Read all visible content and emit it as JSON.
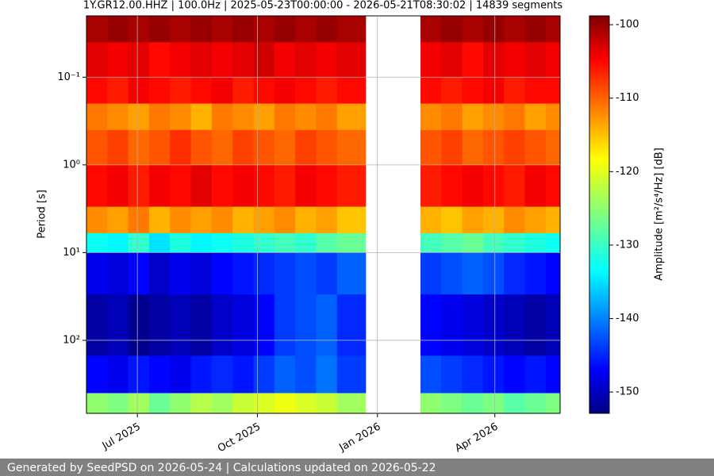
{
  "chart_data": {
    "type": "heatmap",
    "title": "1Y.GR12.00.HHZ | 100.0Hz | 2025-05-23T00:00:00 - 2026-05-21T08:30:02 | 14839 segments",
    "ylabel": "Period [s]",
    "colorbar_label": "Amplitude [m²/s⁴/Hz] [dB]",
    "footer": "Generated by SeedPSD on 2026-05-24 | Calculations updated on 2026-05-22",
    "colormap": "jet",
    "yscale": "log",
    "yinvert": true,
    "grid": true,
    "xlim": [
      "2025-05-23",
      "2026-05-21"
    ],
    "xticks": [
      {
        "value": "2025-07-01",
        "label": "Jul 2025"
      },
      {
        "value": "2025-10-01",
        "label": "Oct 2025"
      },
      {
        "value": "2026-01-01",
        "label": "Jan 2026"
      },
      {
        "value": "2026-04-01",
        "label": "Apr 2026"
      }
    ],
    "ylim": [
      0.02,
      680
    ],
    "yticks": [
      {
        "value": 0.1,
        "label": "10⁻¹"
      },
      {
        "value": 1,
        "label": "10⁰"
      },
      {
        "value": 10,
        "label": "10¹"
      },
      {
        "value": 100,
        "label": "10²"
      }
    ],
    "clim": [
      -152.9,
      -98.8
    ],
    "cticks": [
      -150,
      -140,
      -130,
      -120,
      -110,
      -100
    ],
    "x_edges": [
      "2025-05-23",
      "2025-06-08",
      "2025-06-24",
      "2025-07-10",
      "2025-07-26",
      "2025-08-11",
      "2025-08-27",
      "2025-09-12",
      "2025-09-28",
      "2025-10-14",
      "2025-10-30",
      "2025-11-15",
      "2025-12-01",
      "2025-12-23",
      "2026-02-03",
      "2026-02-19",
      "2026-03-07",
      "2026-03-23",
      "2026-04-08",
      "2026-04-24",
      "2026-05-10",
      "2026-05-21"
    ],
    "y_edges": [
      0.02,
      0.04,
      0.1,
      0.2,
      0.4,
      1,
      3,
      6,
      10,
      30,
      150,
      400,
      680
    ],
    "values": [
      [
        -101,
        -100,
        -101,
        -100,
        -101,
        -100,
        -101,
        -100,
        -101,
        -100,
        -101,
        -100,
        -101,
        null,
        -101,
        -100,
        -101,
        -100,
        -101,
        -100,
        -101
      ],
      [
        -104,
        -105,
        -104,
        -106,
        -105,
        -104,
        -105,
        -104,
        -103,
        -105,
        -104,
        -105,
        -104,
        null,
        -105,
        -104,
        -106,
        -104,
        -105,
        -104,
        -105
      ],
      [
        -106,
        -107,
        -105,
        -106,
        -107,
        -106,
        -105,
        -107,
        -106,
        -105,
        -106,
        -107,
        -106,
        null,
        -106,
        -107,
        -106,
        -105,
        -107,
        -106,
        -106
      ],
      [
        -112,
        -113,
        -114,
        -112,
        -113,
        -115,
        -112,
        -113,
        -114,
        -112,
        -113,
        -112,
        -114,
        null,
        -113,
        -112,
        -114,
        -113,
        -112,
        -114,
        -113
      ],
      [
        -110,
        -109,
        -111,
        -110,
        -108,
        -110,
        -111,
        -109,
        -110,
        -111,
        -109,
        -110,
        -111,
        null,
        -110,
        -109,
        -111,
        -110,
        -109,
        -110,
        -111
      ],
      [
        -106,
        -105,
        -107,
        -105,
        -106,
        -104,
        -106,
        -105,
        -106,
        -107,
        -105,
        -106,
        -107,
        null,
        -107,
        -106,
        -105,
        -106,
        -107,
        -105,
        -106
      ],
      [
        -113,
        -114,
        -112,
        -115,
        -113,
        -114,
        -113,
        -115,
        -114,
        -113,
        -115,
        -114,
        -116,
        null,
        -115,
        -116,
        -114,
        -115,
        -113,
        -114,
        -115
      ],
      [
        -132,
        -133,
        -130,
        -134,
        -131,
        -133,
        -132,
        -131,
        -130,
        -129,
        -130,
        -128,
        -127,
        null,
        -129,
        -128,
        -127,
        -129,
        -130,
        -131,
        -132
      ],
      [
        -147,
        -148,
        -146,
        -149,
        -147,
        -148,
        -146,
        -145,
        -144,
        -143,
        -142,
        -143,
        -141,
        null,
        -143,
        -142,
        -141,
        -142,
        -144,
        -145,
        -146
      ],
      [
        -151,
        -150,
        -152,
        -151,
        -150,
        -151,
        -149,
        -148,
        -146,
        -143,
        -142,
        -141,
        -144,
        null,
        -146,
        -147,
        -148,
        -149,
        -150,
        -151,
        -150
      ],
      [
        -146,
        -147,
        -145,
        -146,
        -147,
        -145,
        -144,
        -145,
        -143,
        -141,
        -142,
        -140,
        -143,
        null,
        -142,
        -143,
        -144,
        -145,
        -146,
        -145,
        -146
      ],
      [
        -125,
        -126,
        -124,
        -127,
        -125,
        -123,
        -124,
        -122,
        -121,
        -120,
        -121,
        -122,
        -124,
        null,
        -125,
        -126,
        -127,
        -126,
        -128,
        -127,
        -126
      ]
    ]
  }
}
